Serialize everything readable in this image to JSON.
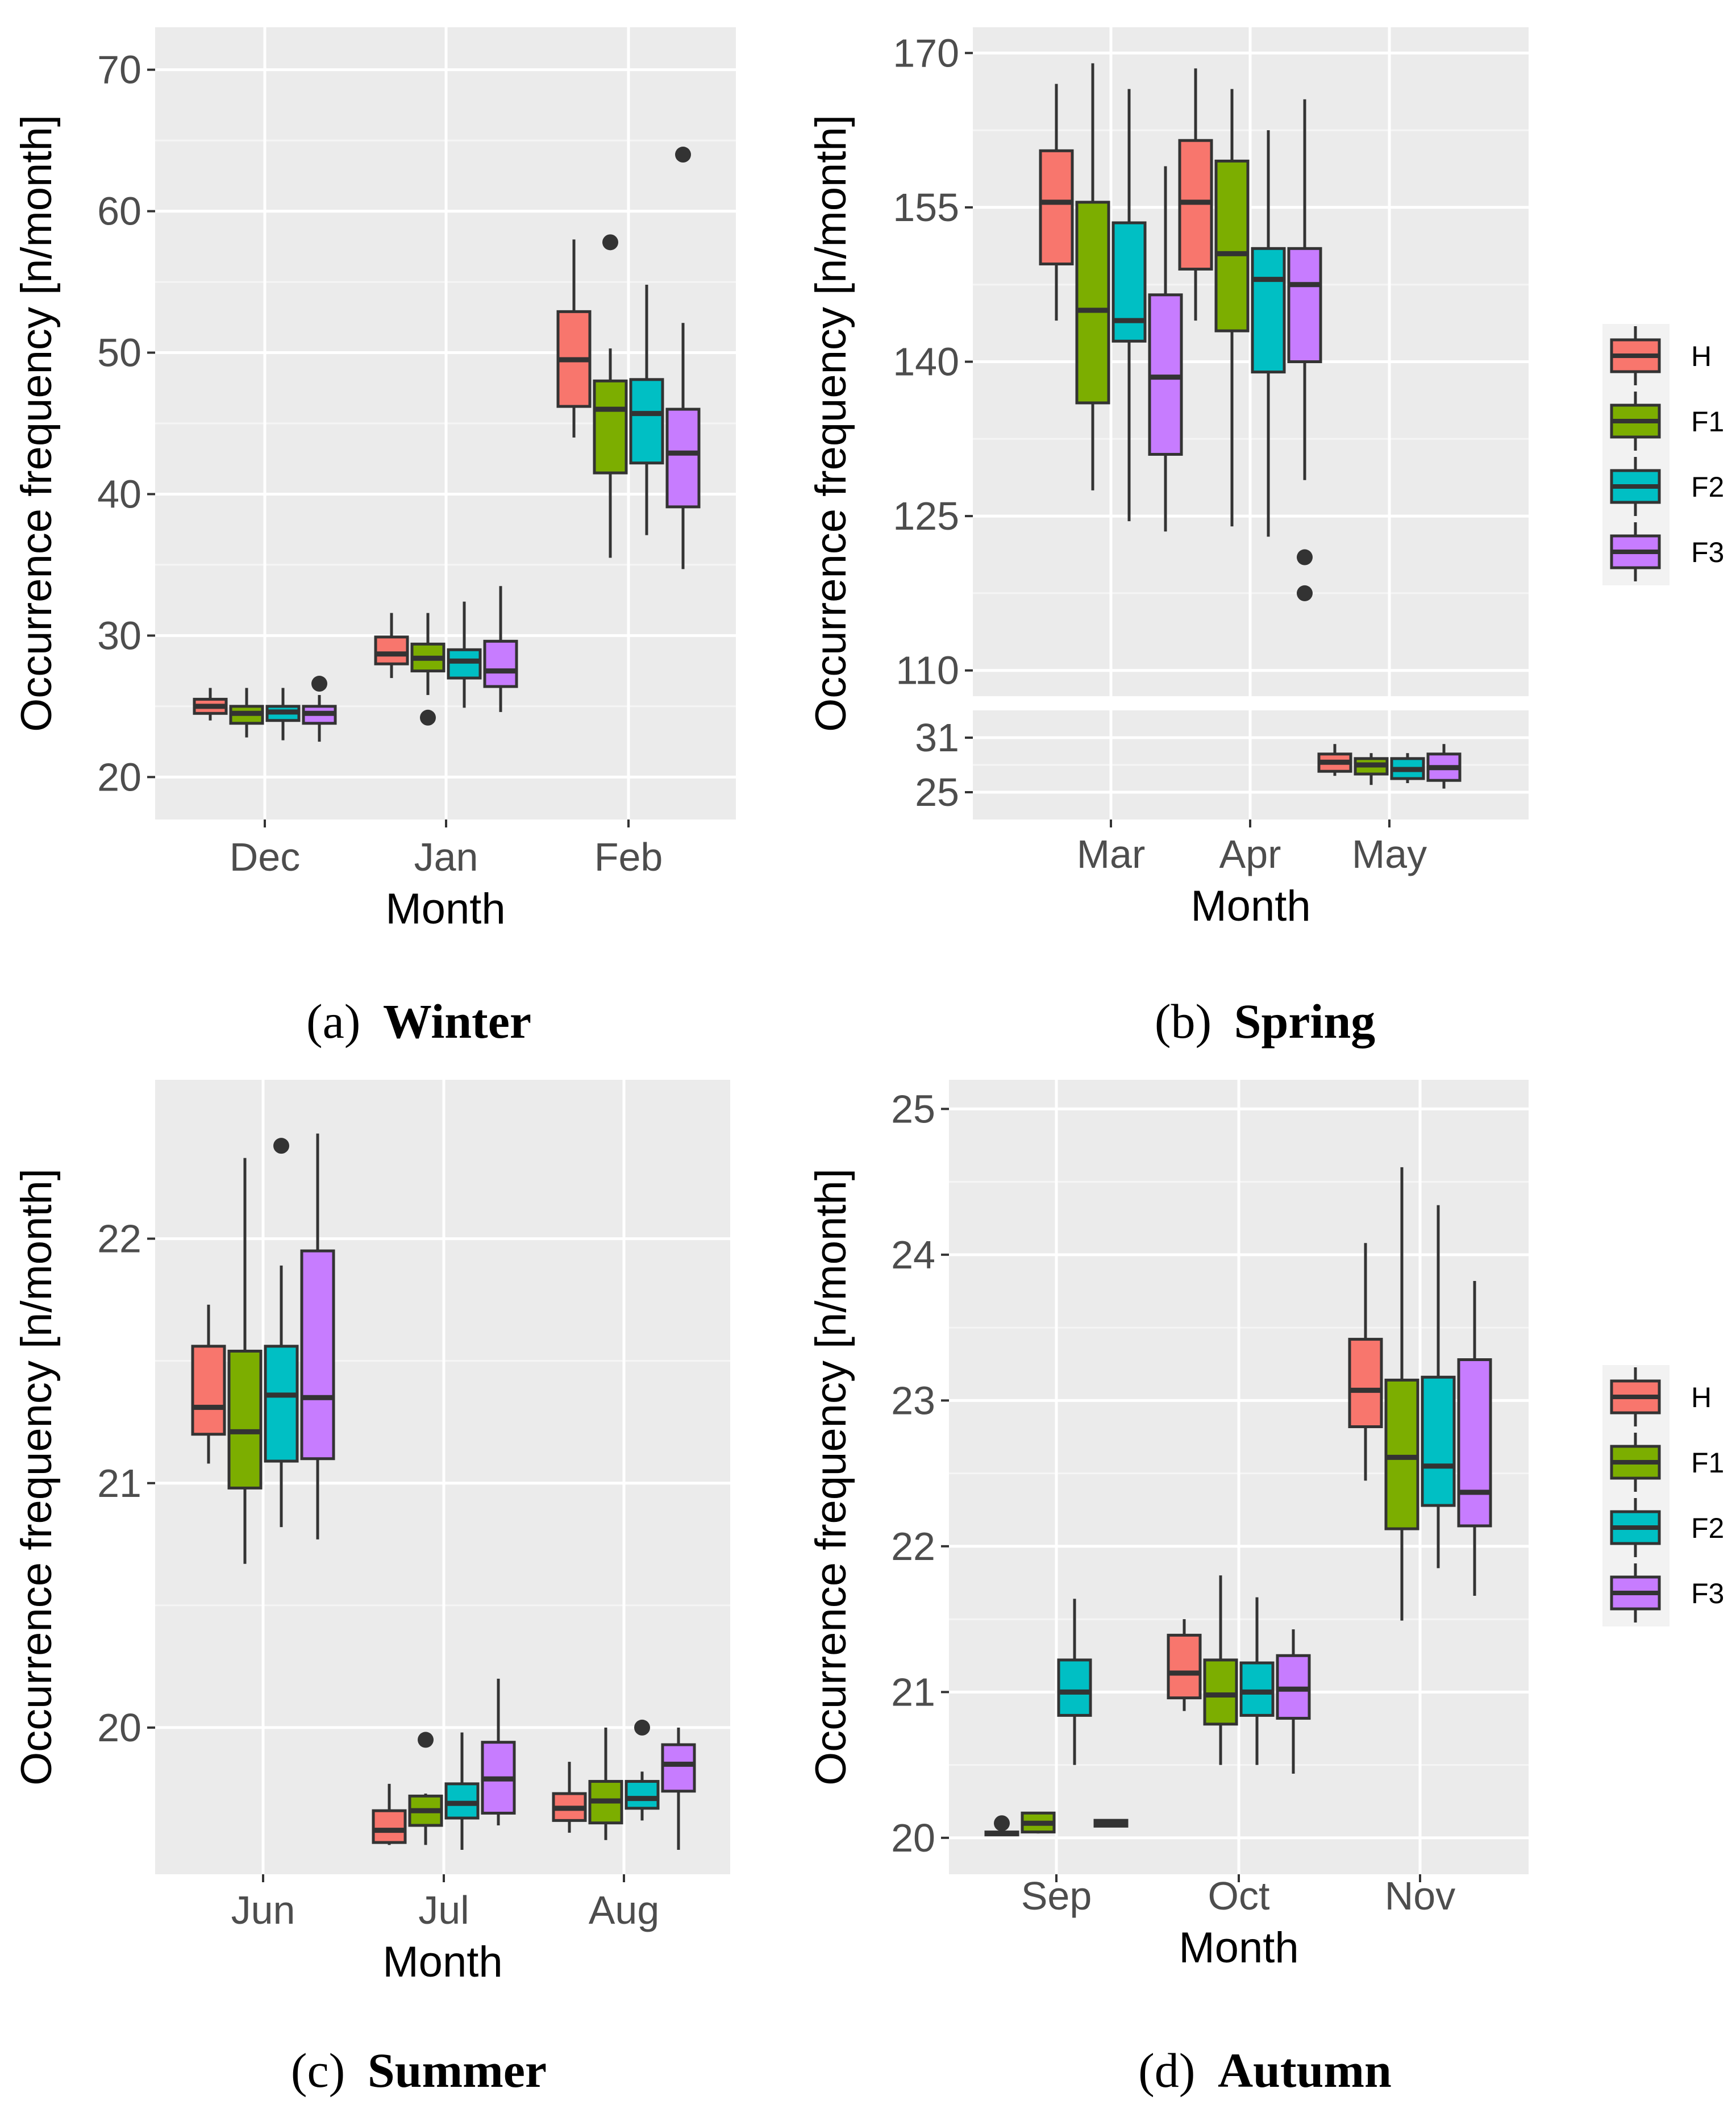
{
  "colors": {
    "panel_bg": "#ebebeb",
    "grid_major": "#ffffff",
    "grid_minor": "#f5f5f5",
    "box_outline": "#333333",
    "H": "#f8766d",
    "F1": "#7cae00",
    "F2": "#00bfc4",
    "F3": "#c77cff"
  },
  "legend": {
    "entries": [
      {
        "key": "H",
        "label": "H",
        "color": "#f8766d"
      },
      {
        "key": "F1",
        "label": "F1",
        "color": "#7cae00"
      },
      {
        "key": "F2",
        "label": "F2",
        "color": "#00bfc4"
      },
      {
        "key": "F3",
        "label": "F3",
        "color": "#c77cff"
      }
    ]
  },
  "chart_data": [
    {
      "id": "winter",
      "type": "box",
      "caption_letter": "(a)",
      "caption_title": "Winter",
      "xlabel": "Month",
      "ylabel": "Occurrence frequency [n/month]",
      "categories": [
        "Dec",
        "Jan",
        "Feb"
      ],
      "yticks": [
        20,
        30,
        40,
        50,
        60,
        70
      ],
      "ylim": [
        17,
        73
      ],
      "series_order": [
        "H",
        "F1",
        "F2",
        "F3"
      ],
      "boxes": [
        {
          "cat": 0,
          "series": "H",
          "min": 24.0,
          "q1": 24.5,
          "median": 25.0,
          "q3": 25.5,
          "max": 26.3,
          "outliers": []
        },
        {
          "cat": 0,
          "series": "F1",
          "min": 22.8,
          "q1": 23.8,
          "median": 24.5,
          "q3": 25.0,
          "max": 26.3,
          "outliers": []
        },
        {
          "cat": 0,
          "series": "F2",
          "min": 22.6,
          "q1": 24.0,
          "median": 24.6,
          "q3": 25.0,
          "max": 26.3,
          "outliers": []
        },
        {
          "cat": 0,
          "series": "F3",
          "min": 22.5,
          "q1": 23.8,
          "median": 24.5,
          "q3": 25.0,
          "max": 25.8,
          "outliers": [
            26.6
          ]
        },
        {
          "cat": 1,
          "series": "H",
          "min": 27.0,
          "q1": 28.0,
          "median": 28.7,
          "q3": 29.9,
          "max": 31.6,
          "outliers": []
        },
        {
          "cat": 1,
          "series": "F1",
          "min": 25.8,
          "q1": 27.5,
          "median": 28.4,
          "q3": 29.4,
          "max": 31.6,
          "outliers": [
            24.2
          ]
        },
        {
          "cat": 1,
          "series": "F2",
          "min": 24.9,
          "q1": 27.0,
          "median": 28.2,
          "q3": 29.0,
          "max": 32.4,
          "outliers": []
        },
        {
          "cat": 1,
          "series": "F3",
          "min": 24.6,
          "q1": 26.4,
          "median": 27.5,
          "q3": 29.6,
          "max": 33.5,
          "outliers": []
        },
        {
          "cat": 2,
          "series": "H",
          "min": 44.0,
          "q1": 46.2,
          "median": 49.5,
          "q3": 52.9,
          "max": 58.0,
          "outliers": []
        },
        {
          "cat": 2,
          "series": "F1",
          "min": 35.5,
          "q1": 41.5,
          "median": 46.0,
          "q3": 48.0,
          "max": 50.3,
          "outliers": [
            57.8
          ]
        },
        {
          "cat": 2,
          "series": "F2",
          "min": 37.1,
          "q1": 42.2,
          "median": 45.7,
          "q3": 48.1,
          "max": 54.8,
          "outliers": []
        },
        {
          "cat": 2,
          "series": "F3",
          "min": 34.7,
          "q1": 39.1,
          "median": 42.9,
          "q3": 46.0,
          "max": 52.1,
          "outliers": [
            64.0
          ]
        }
      ]
    },
    {
      "id": "spring",
      "type": "box",
      "caption_letter": "(b)",
      "caption_title": "Spring",
      "xlabel": "Month",
      "ylabel": "Occurrence frequency [n/month]",
      "categories": [
        "Mar",
        "Apr",
        "May"
      ],
      "axis_break": true,
      "upper_yticks": [
        110,
        125,
        140,
        155,
        170
      ],
      "upper_ylim": [
        107.5,
        172.5
      ],
      "lower_yticks": [
        25,
        31
      ],
      "lower_ylim": [
        22,
        34
      ],
      "series_order": [
        "H",
        "F1",
        "F2",
        "F3"
      ],
      "boxes": [
        {
          "cat": 0,
          "series": "H",
          "min": 144.0,
          "q1": 149.5,
          "median": 155.5,
          "q3": 160.5,
          "max": 167.0,
          "outliers": []
        },
        {
          "cat": 0,
          "series": "F1",
          "min": 127.5,
          "q1": 136.0,
          "median": 145.0,
          "q3": 155.5,
          "max": 169.0,
          "outliers": []
        },
        {
          "cat": 0,
          "series": "F2",
          "min": 124.5,
          "q1": 142.0,
          "median": 144.0,
          "q3": 153.5,
          "max": 166.5,
          "outliers": []
        },
        {
          "cat": 0,
          "series": "F3",
          "min": 123.5,
          "q1": 131.0,
          "median": 138.5,
          "q3": 146.5,
          "max": 159.0,
          "outliers": []
        },
        {
          "cat": 1,
          "series": "H",
          "min": 144.0,
          "q1": 149.0,
          "median": 155.5,
          "q3": 161.5,
          "max": 168.5,
          "outliers": []
        },
        {
          "cat": 1,
          "series": "F1",
          "min": 124.0,
          "q1": 143.0,
          "median": 150.5,
          "q3": 159.5,
          "max": 166.5,
          "outliers": []
        },
        {
          "cat": 1,
          "series": "F2",
          "min": 123.0,
          "q1": 139.0,
          "median": 148.0,
          "q3": 151.0,
          "max": 162.5,
          "outliers": []
        },
        {
          "cat": 1,
          "series": "F3",
          "min": 128.5,
          "q1": 140.0,
          "median": 147.5,
          "q3": 151.0,
          "max": 165.5,
          "outliers": [
            121.0,
            117.5
          ]
        },
        {
          "cat": 2,
          "series": "H",
          "min": 26.8,
          "q1": 27.3,
          "median": 28.3,
          "q3": 29.2,
          "max": 30.3,
          "outliers": []
        },
        {
          "cat": 2,
          "series": "F1",
          "min": 25.8,
          "q1": 27.0,
          "median": 28.0,
          "q3": 28.7,
          "max": 29.3,
          "outliers": []
        },
        {
          "cat": 2,
          "series": "F2",
          "min": 26.0,
          "q1": 26.5,
          "median": 27.5,
          "q3": 28.7,
          "max": 29.3,
          "outliers": []
        },
        {
          "cat": 2,
          "series": "F3",
          "min": 25.4,
          "q1": 26.3,
          "median": 27.7,
          "q3": 29.2,
          "max": 30.3,
          "outliers": []
        }
      ]
    },
    {
      "id": "summer",
      "type": "box",
      "caption_letter": "(c)",
      "caption_title": "Summer",
      "xlabel": "Month",
      "ylabel": "Occurrence frequency [n/month]",
      "categories": [
        "Jun",
        "Jul",
        "Aug"
      ],
      "yticks": [
        20,
        21,
        22
      ],
      "ylim": [
        19.4,
        22.65
      ],
      "series_order": [
        "H",
        "F1",
        "F2",
        "F3"
      ],
      "boxes": [
        {
          "cat": 0,
          "series": "H",
          "min": 21.08,
          "q1": 21.2,
          "median": 21.31,
          "q3": 21.56,
          "max": 21.73,
          "outliers": []
        },
        {
          "cat": 0,
          "series": "F1",
          "min": 20.67,
          "q1": 20.98,
          "median": 21.21,
          "q3": 21.54,
          "max": 22.33,
          "outliers": []
        },
        {
          "cat": 0,
          "series": "F2",
          "min": 20.82,
          "q1": 21.09,
          "median": 21.36,
          "q3": 21.56,
          "max": 21.89,
          "outliers": [
            22.38
          ]
        },
        {
          "cat": 0,
          "series": "F3",
          "min": 20.77,
          "q1": 21.1,
          "median": 21.35,
          "q3": 21.95,
          "max": 22.43,
          "outliers": []
        },
        {
          "cat": 1,
          "series": "H",
          "min": 19.52,
          "q1": 19.53,
          "median": 19.58,
          "q3": 19.66,
          "max": 19.77,
          "outliers": []
        },
        {
          "cat": 1,
          "series": "F1",
          "min": 19.52,
          "q1": 19.6,
          "median": 19.66,
          "q3": 19.72,
          "max": 19.73,
          "outliers": [
            19.95
          ]
        },
        {
          "cat": 1,
          "series": "F2",
          "min": 19.5,
          "q1": 19.63,
          "median": 19.69,
          "q3": 19.77,
          "max": 19.98,
          "outliers": []
        },
        {
          "cat": 1,
          "series": "F3",
          "min": 19.6,
          "q1": 19.65,
          "median": 19.79,
          "q3": 19.94,
          "max": 20.2,
          "outliers": []
        },
        {
          "cat": 2,
          "series": "H",
          "min": 19.57,
          "q1": 19.62,
          "median": 19.67,
          "q3": 19.73,
          "max": 19.86,
          "outliers": []
        },
        {
          "cat": 2,
          "series": "F1",
          "min": 19.54,
          "q1": 19.61,
          "median": 19.7,
          "q3": 19.78,
          "max": 20.0,
          "outliers": []
        },
        {
          "cat": 2,
          "series": "F2",
          "min": 19.62,
          "q1": 19.67,
          "median": 19.71,
          "q3": 19.78,
          "max": 19.82,
          "outliers": [
            20.0
          ]
        },
        {
          "cat": 2,
          "series": "F3",
          "min": 19.5,
          "q1": 19.74,
          "median": 19.85,
          "q3": 19.93,
          "max": 20.0,
          "outliers": []
        }
      ]
    },
    {
      "id": "autumn",
      "type": "box",
      "caption_letter": "(d)",
      "caption_title": "Autumn",
      "xlabel": "Month",
      "ylabel": "Occurrence frequency [n/month]",
      "categories": [
        "Sep",
        "Oct",
        "Nov"
      ],
      "yticks": [
        20,
        21,
        22,
        23,
        24,
        25
      ],
      "ylim": [
        19.75,
        25.2
      ],
      "series_order": [
        "H",
        "F1",
        "F2",
        "F3"
      ],
      "boxes": [
        {
          "cat": 0,
          "series": "H",
          "min": 20.02,
          "q1": 20.02,
          "median": 20.03,
          "q3": 20.04,
          "max": 20.05,
          "outliers": [
            20.1
          ]
        },
        {
          "cat": 0,
          "series": "F1",
          "min": 20.03,
          "q1": 20.04,
          "median": 20.1,
          "q3": 20.17,
          "max": 20.17,
          "outliers": []
        },
        {
          "cat": 0,
          "series": "F2",
          "min": 20.5,
          "q1": 20.84,
          "median": 21.0,
          "q3": 21.22,
          "max": 21.64,
          "outliers": []
        },
        {
          "cat": 0,
          "series": "F3",
          "min": 20.08,
          "q1": 20.08,
          "median": 20.1,
          "q3": 20.12,
          "max": 20.12,
          "outliers": []
        },
        {
          "cat": 1,
          "series": "H",
          "min": 20.87,
          "q1": 20.96,
          "median": 21.13,
          "q3": 21.39,
          "max": 21.5,
          "outliers": []
        },
        {
          "cat": 1,
          "series": "F1",
          "min": 20.5,
          "q1": 20.78,
          "median": 20.98,
          "q3": 21.22,
          "max": 21.8,
          "outliers": []
        },
        {
          "cat": 1,
          "series": "F2",
          "min": 20.5,
          "q1": 20.84,
          "median": 21.0,
          "q3": 21.2,
          "max": 21.65,
          "outliers": []
        },
        {
          "cat": 1,
          "series": "F3",
          "min": 20.44,
          "q1": 20.82,
          "median": 21.02,
          "q3": 21.25,
          "max": 21.43,
          "outliers": []
        },
        {
          "cat": 2,
          "series": "H",
          "min": 22.45,
          "q1": 22.82,
          "median": 23.07,
          "q3": 23.42,
          "max": 24.08,
          "outliers": []
        },
        {
          "cat": 2,
          "series": "F1",
          "min": 21.49,
          "q1": 22.12,
          "median": 22.61,
          "q3": 23.14,
          "max": 24.6,
          "outliers": []
        },
        {
          "cat": 2,
          "series": "F2",
          "min": 21.85,
          "q1": 22.28,
          "median": 22.55,
          "q3": 23.16,
          "max": 24.34,
          "outliers": []
        },
        {
          "cat": 2,
          "series": "F3",
          "min": 21.66,
          "q1": 22.14,
          "median": 22.37,
          "q3": 23.28,
          "max": 23.82,
          "outliers": []
        }
      ]
    }
  ]
}
